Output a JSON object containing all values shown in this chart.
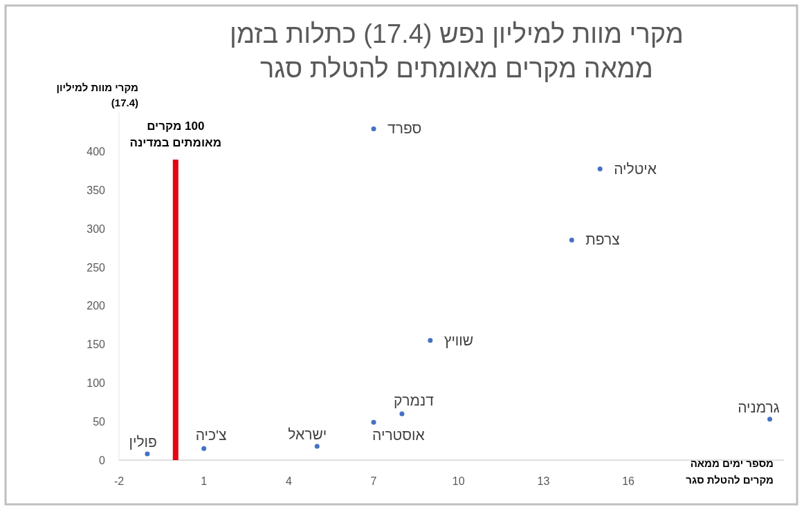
{
  "chart_data": {
    "type": "scatter",
    "title": "מקרי מוות למיליון נפש (17.4) כתלות בזמן ממאה מקרים מאומתים להטלת סגר",
    "xlabel": "מספר ימים ממאה מקרים להטלת סגר",
    "ylabel": "מקרי מוות למיליון (17.4)",
    "xlim": [
      -2,
      21.5
    ],
    "ylim": [
      0,
      450
    ],
    "xticks": [
      -2,
      1,
      4,
      7,
      10,
      13,
      16
    ],
    "yticks": [
      0,
      50,
      100,
      150,
      200,
      250,
      300,
      350,
      400
    ],
    "grid": false,
    "legend": false,
    "marker": "circle",
    "ref_lines": [
      {
        "axis": "x",
        "value": 0,
        "label": "100 מקרים מאומתים במדינה",
        "color": "#e30613"
      }
    ],
    "series": [
      {
        "name": "פולין",
        "color": "#4472c4",
        "x": [
          -1
        ],
        "values": [
          8
        ]
      },
      {
        "name": "צ'כיה",
        "color": "#4472c4",
        "x": [
          1
        ],
        "values": [
          15
        ]
      },
      {
        "name": "ישראל",
        "color": "#4472c4",
        "x": [
          5
        ],
        "values": [
          18
        ]
      },
      {
        "name": "אוסטריה",
        "color": "#4472c4",
        "x": [
          7
        ],
        "values": [
          49
        ]
      },
      {
        "name": "דנמרק",
        "color": "#4472c4",
        "x": [
          8
        ],
        "values": [
          60
        ]
      },
      {
        "name": "שוויץ",
        "color": "#4472c4",
        "x": [
          9
        ],
        "values": [
          155
        ]
      },
      {
        "name": "ספרד",
        "color": "#4472c4",
        "x": [
          7
        ],
        "values": [
          429
        ]
      },
      {
        "name": "איטליה",
        "color": "#4472c4",
        "x": [
          15
        ],
        "values": [
          377
        ]
      },
      {
        "name": "צרפת",
        "color": "#4472c4",
        "x": [
          14
        ],
        "values": [
          285
        ]
      },
      {
        "name": "גרמניה",
        "color": "#4472c4",
        "x": [
          21
        ],
        "values": [
          53
        ]
      }
    ]
  }
}
